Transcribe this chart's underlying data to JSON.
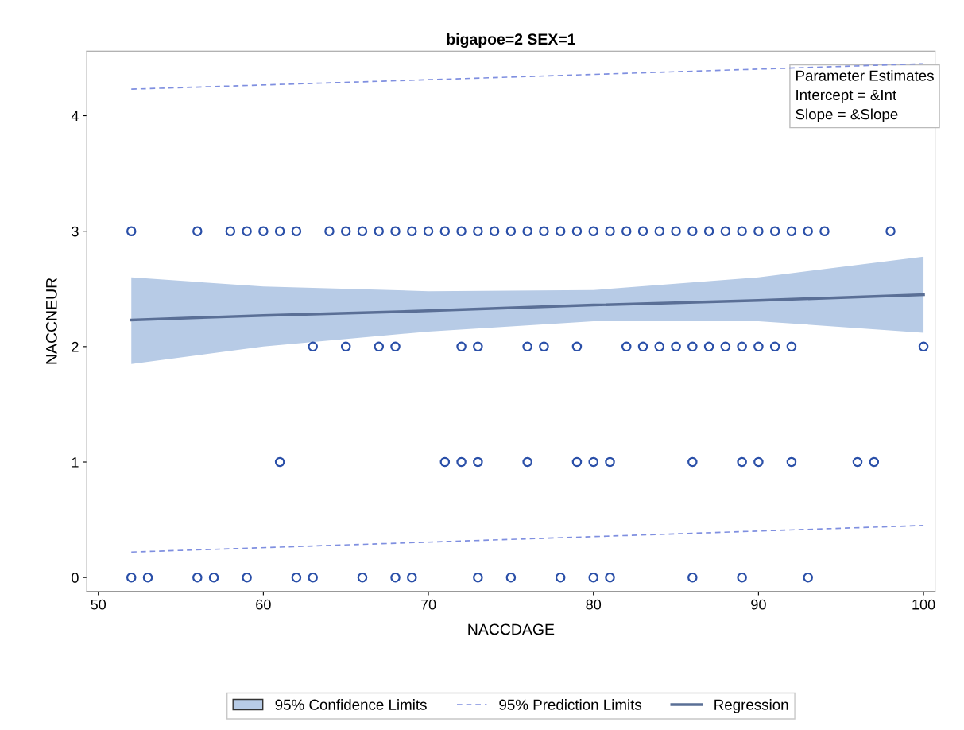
{
  "chart_data": {
    "type": "scatter",
    "title": "bigapoe=2 SEX=1",
    "xlabel": "NACCDAGE",
    "ylabel": "NACCNEUR",
    "xlim": [
      49.3,
      100.7
    ],
    "ylim": [
      -0.12,
      4.56
    ],
    "xticks": [
      50,
      60,
      70,
      80,
      90,
      100
    ],
    "yticks": [
      0,
      1,
      2,
      3,
      4
    ],
    "grid": false,
    "legend": "bottom",
    "marker": "circle",
    "annotations": [
      "Parameter Estimates",
      "Intercept = &Int",
      "Slope = &Slope"
    ],
    "series": [
      {
        "name": "95% Confidence Limits",
        "type": "area",
        "color": "#b7cbe6",
        "marker": "none"
      },
      {
        "color": "#2a4fa8",
        "x": [
          52,
          56,
          58,
          59,
          60,
          61,
          62,
          64,
          65,
          66,
          67,
          68,
          69,
          70,
          71,
          72,
          73,
          74,
          75,
          76,
          77,
          78,
          79,
          80,
          81,
          82,
          83,
          84,
          85,
          86,
          87,
          88,
          89,
          90,
          91,
          92,
          93,
          94,
          98,
          63,
          65,
          67,
          68,
          72,
          73,
          76,
          77,
          79,
          82,
          83,
          84,
          85,
          86,
          87,
          88,
          89,
          90,
          91,
          92,
          100,
          61,
          71,
          72,
          73,
          76,
          79,
          80,
          81,
          86,
          89,
          90,
          92,
          96,
          97,
          52,
          53,
          56,
          57,
          59,
          62,
          63,
          66,
          68,
          69,
          73,
          75,
          78,
          80,
          81,
          86,
          89,
          93
        ],
        "values": [
          3,
          3,
          3,
          3,
          3,
          3,
          3,
          3,
          3,
          3,
          3,
          3,
          3,
          3,
          3,
          3,
          3,
          3,
          3,
          3,
          3,
          3,
          3,
          3,
          3,
          3,
          3,
          3,
          3,
          3,
          3,
          3,
          3,
          3,
          3,
          3,
          3,
          3,
          3,
          2,
          2,
          2,
          2,
          2,
          2,
          2,
          2,
          2,
          2,
          2,
          2,
          2,
          2,
          2,
          2,
          2,
          2,
          2,
          2,
          2,
          1,
          1,
          1,
          1,
          1,
          1,
          1,
          1,
          1,
          1,
          1,
          1,
          1,
          1,
          0,
          0,
          0,
          0,
          0,
          0,
          0,
          0,
          0,
          0,
          0,
          0,
          0,
          0,
          0,
          0,
          0,
          0
        ]
      },
      {
        "name": "95% Prediction Limits",
        "type": "line",
        "line_style": "dashed",
        "marker": "none",
        "color": "#7f8fe0",
        "x": [
          52,
          100
        ],
        "values": [
          4.23,
          4.45
        ]
      },
      {
        "type": "line",
        "line_style": "dashed",
        "marker": "none",
        "color": "#7f8fe0",
        "x": [
          52,
          100
        ],
        "values": [
          0.22,
          0.45
        ]
      },
      {
        "name": "Regression",
        "type": "line",
        "line_style": "solid",
        "marker": "none",
        "color": "#5a6f96",
        "x": [
          52,
          60,
          70,
          80,
          90,
          100
        ],
        "values": [
          2.23,
          2.27,
          2.31,
          2.36,
          2.4,
          2.45
        ],
        "lower": [
          1.85,
          2.0,
          2.13,
          2.22,
          2.22,
          2.12
        ],
        "upper": [
          2.6,
          2.52,
          2.48,
          2.49,
          2.6,
          2.78
        ]
      }
    ]
  }
}
